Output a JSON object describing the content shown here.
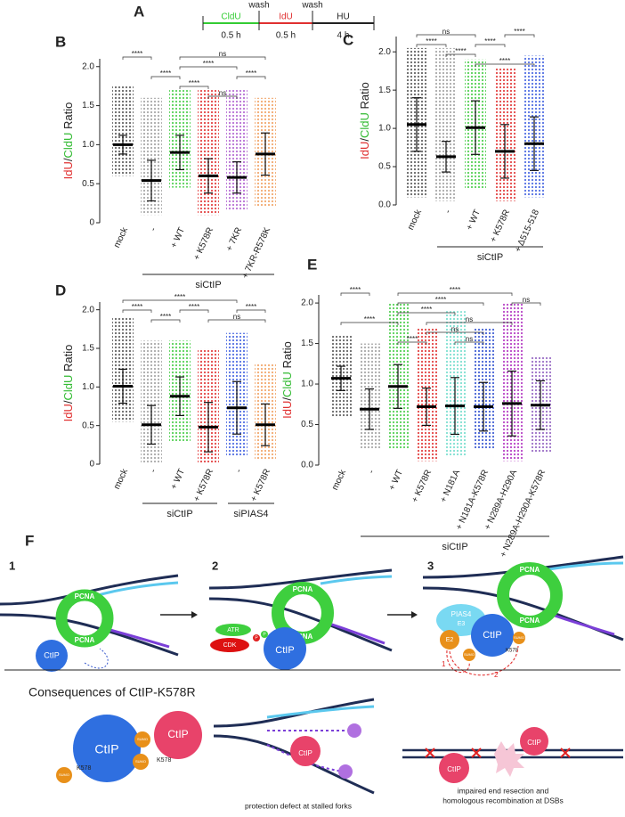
{
  "timeline": {
    "panel": "A",
    "wash": "wash",
    "steps": [
      {
        "label": "CldU",
        "duration": "0.5 h",
        "color": "#33cc33"
      },
      {
        "label": "IdU",
        "duration": "0.5 h",
        "color": "#e03030"
      },
      {
        "label": "HU",
        "duration": "4 h",
        "color": "#222222"
      }
    ]
  },
  "chart_data": [
    {
      "type": "dotplot",
      "panel": "B",
      "ylabel": [
        {
          "text": "IdU",
          "color": "#e03030"
        },
        {
          "text": "/",
          "color": "#222222"
        },
        {
          "text": "CldU",
          "color": "#33bb33"
        },
        {
          "text": " Ratio",
          "color": "#222222"
        }
      ],
      "categories": [
        "mock",
        "-",
        "+ WT",
        "+ K578R",
        "+ 7KR",
        "+ 7KR-R578K"
      ],
      "colors": [
        "#555555",
        "#a0a0a0",
        "#44cc44",
        "#e03030",
        "#b060d0",
        "#f0a060"
      ],
      "values": [
        1.0,
        0.54,
        0.9,
        0.6,
        0.58,
        0.88
      ],
      "errors": [
        0.12,
        0.26,
        0.22,
        0.22,
        0.2,
        0.27
      ],
      "min": [
        0.6,
        0.1,
        0.45,
        0.1,
        0.15,
        0.2
      ],
      "max": [
        1.75,
        1.6,
        1.7,
        1.7,
        1.7,
        1.6
      ],
      "ylim": [
        0,
        2.1
      ],
      "yticks": [
        0,
        0.5,
        {
          "value": 1,
          "label": "1.0"
        },
        1.5,
        {
          "value": 2,
          "label": "2.0"
        }
      ],
      "comparisons": [
        {
          "from": 2,
          "to": 5,
          "label": "ns"
        },
        {
          "from": 2,
          "to": 4,
          "label": "****"
        },
        {
          "from": 1,
          "to": 2,
          "label": "****"
        },
        {
          "from": 0,
          "to": 1,
          "label": "****"
        },
        {
          "from": 2,
          "to": 3,
          "label": "****"
        },
        {
          "from": 4,
          "to": 5,
          "label": "****"
        },
        {
          "from": 3,
          "to": 4,
          "label": "ns"
        }
      ],
      "groups": [
        {
          "label": "siCtIP",
          "from": 1,
          "to": 5
        }
      ]
    },
    {
      "type": "dotplot",
      "panel": "C",
      "ylabel": [
        {
          "text": "IdU",
          "color": "#e03030"
        },
        {
          "text": "/",
          "color": "#222222"
        },
        {
          "text": "CldU",
          "color": "#33bb33"
        },
        {
          "text": " Ratio",
          "color": "#222222"
        }
      ],
      "categories": [
        "mock",
        "-",
        "+ WT",
        "+ K578R",
        "+ Δ515-518"
      ],
      "colors": [
        "#555555",
        "#a0a0a0",
        "#44cc44",
        "#e03030",
        "#4060e0"
      ],
      "values": [
        1.05,
        0.63,
        1.01,
        0.7,
        0.8
      ],
      "errors": [
        0.35,
        0.2,
        0.35,
        0.35,
        0.35
      ],
      "min": [
        0.1,
        0.05,
        0.2,
        0.05,
        0.1
      ],
      "max": [
        2.05,
        2.05,
        1.9,
        1.8,
        1.95
      ],
      "ylim": [
        0,
        2.2
      ],
      "yticks": [
        {
          "value": 0,
          "label": "0.0"
        },
        0.5,
        {
          "value": 1,
          "label": "1.0"
        },
        1.5,
        {
          "value": 2,
          "label": "2.0"
        }
      ],
      "comparisons": [
        {
          "from": 0,
          "to": 2,
          "label": "ns"
        },
        {
          "from": 0,
          "to": 1,
          "label": "****"
        },
        {
          "from": 1,
          "to": 2,
          "label": "****"
        },
        {
          "from": 2,
          "to": 3,
          "label": "****"
        },
        {
          "from": 3,
          "to": 4,
          "label": "****"
        },
        {
          "from": 2,
          "to": 4,
          "label": "****"
        }
      ],
      "groups": [
        {
          "label": "siCtIP",
          "from": 1,
          "to": 4
        }
      ]
    },
    {
      "type": "dotplot",
      "panel": "D",
      "ylabel": [
        {
          "text": "IdU",
          "color": "#e03030"
        },
        {
          "text": "/",
          "color": "#222222"
        },
        {
          "text": "CldU",
          "color": "#33bb33"
        },
        {
          "text": " Ratio",
          "color": "#222222"
        }
      ],
      "categories": [
        "mock",
        "-",
        "+ WT",
        "+ K578R",
        "-",
        "+ K578R"
      ],
      "colors": [
        "#555555",
        "#a0a0a0",
        "#44cc44",
        "#e03030",
        "#4060e0",
        "#f0a060"
      ],
      "values": [
        1.01,
        0.51,
        0.88,
        0.48,
        0.73,
        0.51
      ],
      "errors": [
        0.22,
        0.25,
        0.25,
        0.32,
        0.34,
        0.27
      ],
      "min": [
        0.55,
        0.02,
        0.3,
        0.02,
        0.1,
        0.05
      ],
      "max": [
        1.9,
        1.6,
        1.6,
        1.5,
        1.7,
        1.3
      ],
      "ylim": [
        0,
        2.1
      ],
      "yticks": [
        0,
        0.5,
        {
          "value": 1,
          "label": "1.0"
        },
        1.5,
        {
          "value": 2,
          "label": "2.0"
        }
      ],
      "comparisons": [
        {
          "from": 0,
          "to": 4,
          "label": "****"
        },
        {
          "from": 0,
          "to": 1,
          "label": "****"
        },
        {
          "from": 2,
          "to": 3,
          "label": "****"
        },
        {
          "from": 4,
          "to": 5,
          "label": "****"
        },
        {
          "from": 1,
          "to": 2,
          "label": "****"
        },
        {
          "from": 3,
          "to": 5,
          "label": "ns"
        }
      ],
      "groups": [
        {
          "label": "siCtIP",
          "from": 1,
          "to": 3
        },
        {
          "label": "siPIAS4",
          "from": 4,
          "to": 5
        }
      ]
    },
    {
      "type": "dotplot",
      "panel": "E",
      "ylabel": [
        {
          "text": "IdU",
          "color": "#e03030"
        },
        {
          "text": "/",
          "color": "#222222"
        },
        {
          "text": "CldU",
          "color": "#33bb33"
        },
        {
          "text": " Ratio",
          "color": "#222222"
        }
      ],
      "categories": [
        "mock",
        "-",
        "+ WT",
        "+ K578R",
        "+ N181A",
        "+ N181A-K578R",
        "+ N289A-H290A",
        "+ N289A-H290A-K578R"
      ],
      "colors": [
        "#555555",
        "#a0a0a0",
        "#44cc44",
        "#e03030",
        "#70dccc",
        "#3050d0",
        "#b030c0",
        "#9060c0"
      ],
      "values": [
        1.07,
        0.69,
        0.97,
        0.72,
        0.73,
        0.72,
        0.76,
        0.74
      ],
      "errors": [
        0.15,
        0.25,
        0.27,
        0.23,
        0.35,
        0.3,
        0.4,
        0.3
      ],
      "min": [
        0.6,
        0.2,
        0.2,
        0.05,
        0.1,
        0.2,
        0.05,
        0.15
      ],
      "max": [
        1.6,
        1.5,
        2.0,
        1.7,
        1.9,
        1.7,
        2.0,
        1.35
      ],
      "ylim": [
        0,
        2.1
      ],
      "yticks": [
        {
          "value": 0,
          "label": "0.0"
        },
        0.5,
        {
          "value": 1,
          "label": "1.0"
        },
        1.5,
        {
          "value": 2,
          "label": "2.0"
        }
      ],
      "comparisons": [
        {
          "from": 2,
          "to": 6,
          "label": "****"
        },
        {
          "from": 2,
          "to": 5,
          "label": "****"
        },
        {
          "from": 2,
          "to": 4,
          "label": "****"
        },
        {
          "from": 6,
          "to": 7,
          "label": "ns"
        },
        {
          "from": 3,
          "to": 6,
          "label": "ns"
        },
        {
          "from": 0,
          "to": 2,
          "label": "****"
        },
        {
          "from": 3,
          "to": 5,
          "label": "ns"
        },
        {
          "from": 0,
          "to": 1,
          "label": "****"
        },
        {
          "from": 2,
          "to": 3,
          "label": "****"
        },
        {
          "from": 4,
          "to": 5,
          "label": "ns"
        }
      ],
      "groups": [
        {
          "label": "siCtIP",
          "from": 1,
          "to": 7
        }
      ]
    }
  ],
  "schematic": {
    "panel": "F",
    "steps": [
      "1",
      "2",
      "3"
    ],
    "pcna": "PCNA",
    "ctip": "CtIP",
    "atr": "ATR",
    "cdk": "CDK",
    "p": "P",
    "pias4": "PIAS4",
    "e3": "E3",
    "e2": "E2",
    "sumo": "SUMO",
    "k578": "K578",
    "arrow_steps": [
      "1",
      "2"
    ],
    "consequences_title": "Consequences of CtIP-K578R",
    "caption_forks": "protection defect at stalled forks",
    "caption_dsb": [
      "impaired end resection and",
      "homologous recombination at DSBs"
    ]
  }
}
